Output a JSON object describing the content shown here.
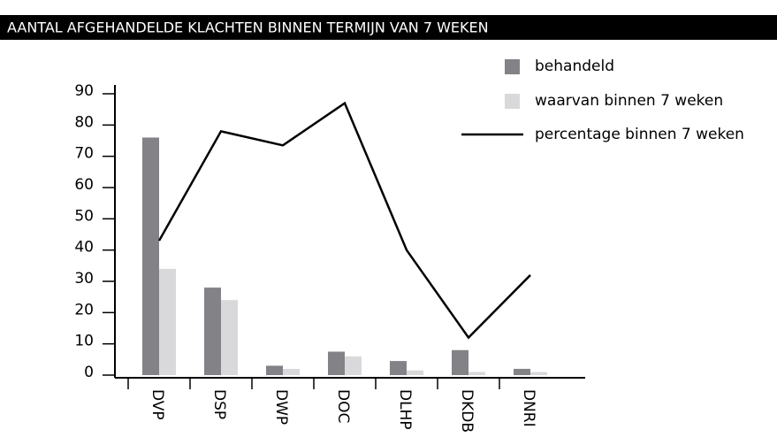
{
  "chart_data": {
    "type": "bar",
    "title": "AANTAL AFGEHANDELDE KLACHTEN BINNEN TERMIJN VAN 7 WEKEN",
    "categories": [
      "DVP",
      "DSP",
      "DWP",
      "DOC",
      "DLHP",
      "DKDB",
      "DNRI"
    ],
    "series": [
      {
        "name": "behandeld",
        "type": "bar",
        "color": "#828287",
        "values": [
          76,
          28,
          3,
          7.5,
          4.5,
          8,
          2
        ]
      },
      {
        "name": "waarvan binnen 7 weken",
        "type": "bar",
        "color": "#d9d9dc",
        "values": [
          34,
          24,
          2,
          6,
          1.5,
          1,
          1
        ]
      },
      {
        "name": "percentage binnen 7 weken",
        "type": "line",
        "color": "#000000",
        "values": [
          43,
          78,
          73.5,
          87,
          40,
          12,
          32
        ]
      }
    ],
    "ylim": [
      0,
      90
    ],
    "yticks": [
      0,
      10,
      20,
      30,
      40,
      50,
      60,
      70,
      80,
      90
    ]
  }
}
